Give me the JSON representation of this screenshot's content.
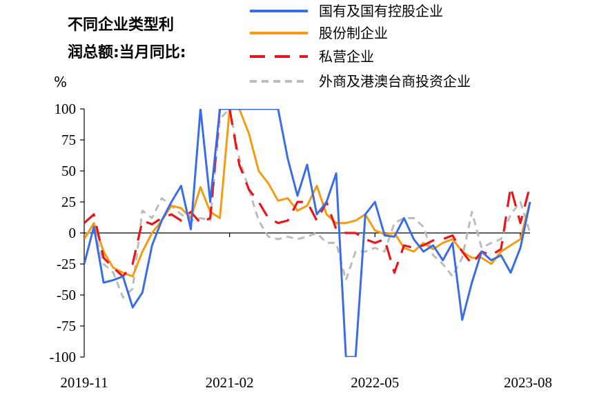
{
  "chart_data": {
    "type": "line",
    "title_lines": [
      "不同企业类型利",
      "润总额:当月同比:"
    ],
    "ylabel": "%",
    "xlabel": "",
    "ylim": [
      -100,
      100
    ],
    "y_ticks": [
      100,
      75,
      50,
      25,
      0,
      -25,
      -50,
      -75,
      -100
    ],
    "x_tick_labels": [
      "2019-11",
      "2021-02",
      "2022-05",
      "2023-08"
    ],
    "x_tick_index": [
      0,
      15,
      30,
      45
    ],
    "grid": false,
    "legend_position": "top-right",
    "series": [
      {
        "name": "国有及国有控股企业",
        "color": "#3a6ce8",
        "dash": "solid",
        "values": [
          -25,
          5,
          -40,
          -38,
          -35,
          -60,
          -48,
          -10,
          10,
          25,
          38,
          3,
          100,
          25,
          100,
          100,
          100,
          100,
          100,
          100,
          100,
          60,
          30,
          55,
          15,
          25,
          48,
          -100,
          -100,
          15,
          25,
          -2,
          -3,
          12,
          -5,
          -15,
          -10,
          -22,
          -8,
          -70,
          -40,
          -15,
          -22,
          -18,
          -32,
          -12,
          25
        ]
      },
      {
        "name": "股份制企业",
        "color": "#f59b10",
        "dash": "solid",
        "values": [
          -5,
          8,
          -15,
          -28,
          -32,
          -35,
          -15,
          0,
          10,
          22,
          20,
          12,
          37,
          17,
          12,
          100,
          100,
          80,
          50,
          40,
          26,
          28,
          18,
          22,
          38,
          15,
          8,
          8,
          10,
          15,
          2,
          -1,
          0,
          -12,
          -15,
          -8,
          -13,
          -8,
          -5,
          -15,
          -20,
          -20,
          -25,
          -15,
          -10,
          -5,
          25
        ]
      },
      {
        "name": "私营企业",
        "color": "#e8161b",
        "dash": "long-dash",
        "values": [
          8,
          15,
          -20,
          -28,
          -35,
          -25,
          10,
          7,
          12,
          15,
          10,
          17,
          8,
          12,
          100,
          100,
          55,
          35,
          25,
          12,
          8,
          10,
          25,
          25,
          10,
          25,
          3,
          0,
          0,
          -5,
          -8,
          -5,
          -32,
          -10,
          -12,
          -10,
          -6,
          -5,
          -2,
          -15,
          -25,
          -15,
          -18,
          -13,
          37,
          8,
          38
        ]
      },
      {
        "name": "外商及港澳台商投资企业",
        "color": "#bcbcbc",
        "dash": "short-dash",
        "values": [
          -2,
          3,
          -25,
          -32,
          -52,
          -45,
          18,
          12,
          28,
          22,
          15,
          10,
          12,
          10,
          92,
          100,
          60,
          35,
          10,
          -3,
          -5,
          -3,
          -5,
          -3,
          0,
          -8,
          -8,
          -38,
          -15,
          -15,
          -12,
          -15,
          8,
          12,
          12,
          5,
          -18,
          -25,
          -35,
          -20,
          17,
          -12,
          -8,
          -5,
          15,
          25,
          0
        ]
      }
    ]
  }
}
